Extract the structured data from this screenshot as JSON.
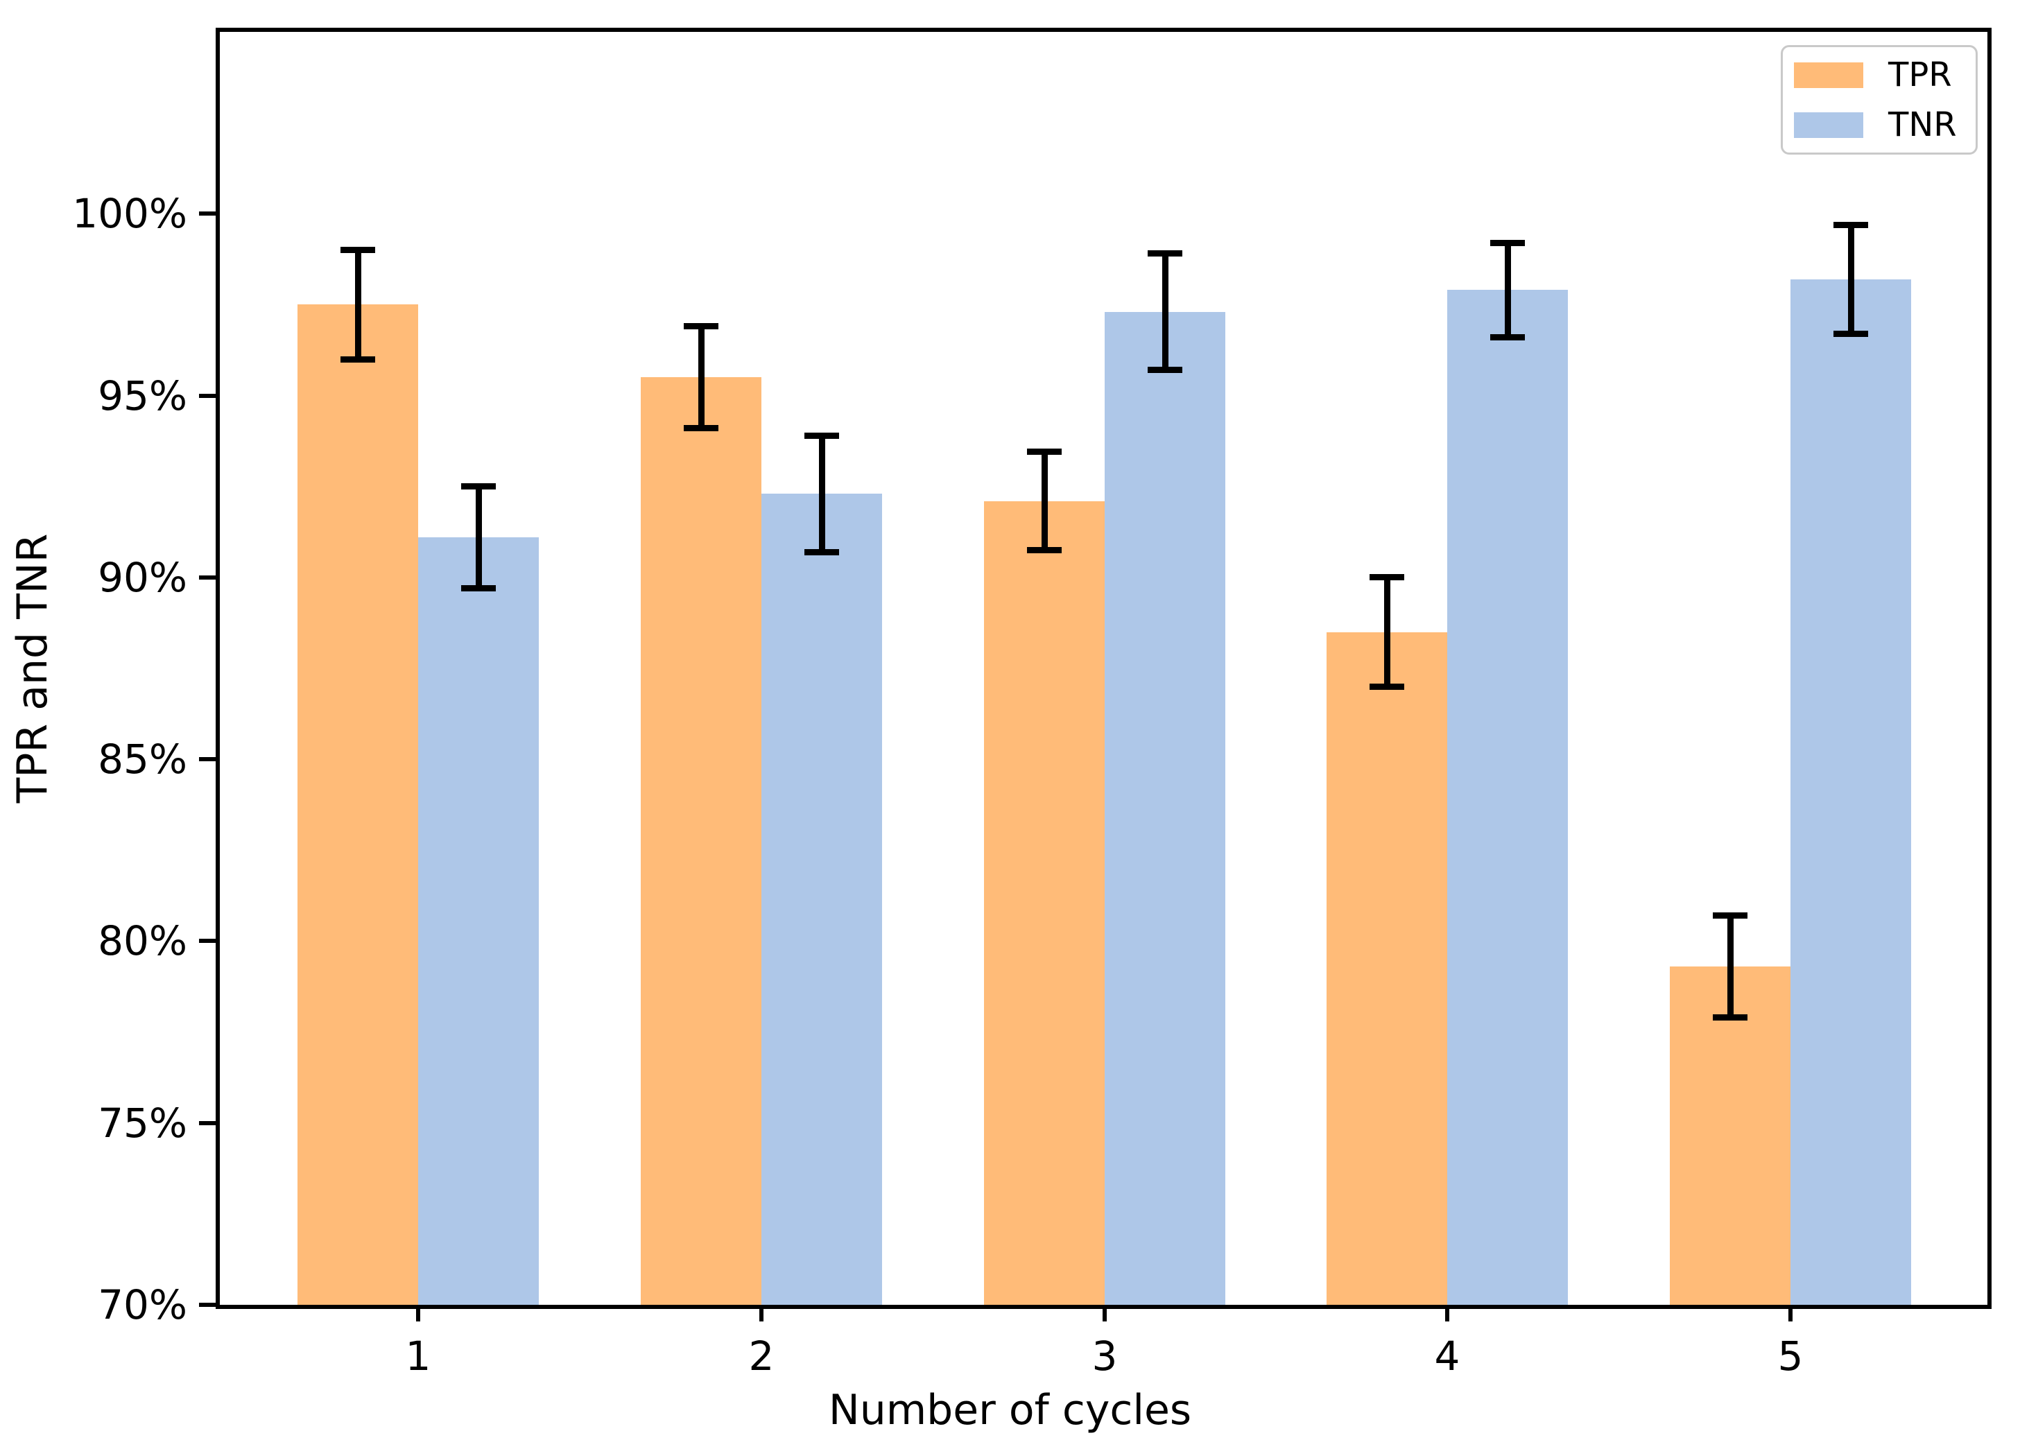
{
  "chart_data": {
    "type": "bar",
    "title": "",
    "xlabel": "Number of cycles",
    "ylabel": "TPR and TNR",
    "categories": [
      "1",
      "2",
      "3",
      "4",
      "5"
    ],
    "series": [
      {
        "name": "TPR",
        "color": "#ffbb78",
        "values": [
          97.5,
          95.5,
          92.1,
          88.5,
          79.3
        ],
        "errors": [
          1.5,
          1.4,
          1.35,
          1.5,
          1.4
        ]
      },
      {
        "name": "TNR",
        "color": "#aec7e8",
        "values": [
          91.1,
          92.3,
          97.3,
          97.9,
          98.2
        ],
        "errors": [
          1.4,
          1.6,
          1.6,
          1.3,
          1.5
        ]
      }
    ],
    "ylim": [
      70,
      105
    ],
    "yticks": [
      70,
      75,
      80,
      85,
      90,
      95,
      100
    ],
    "yticklabels": [
      "70%",
      "75%",
      "80%",
      "85%",
      "90%",
      "95%",
      "100%"
    ],
    "xticklabels": [
      "1",
      "2",
      "3",
      "4",
      "5"
    ],
    "ytick_format": "percent",
    "legend_position": "upper right",
    "grid": false,
    "error_caps": true,
    "error_bar_color": "#000000"
  },
  "legend": {
    "items": [
      {
        "label": "TPR",
        "color": "#ffbb78"
      },
      {
        "label": "TNR",
        "color": "#aec7e8"
      }
    ]
  }
}
